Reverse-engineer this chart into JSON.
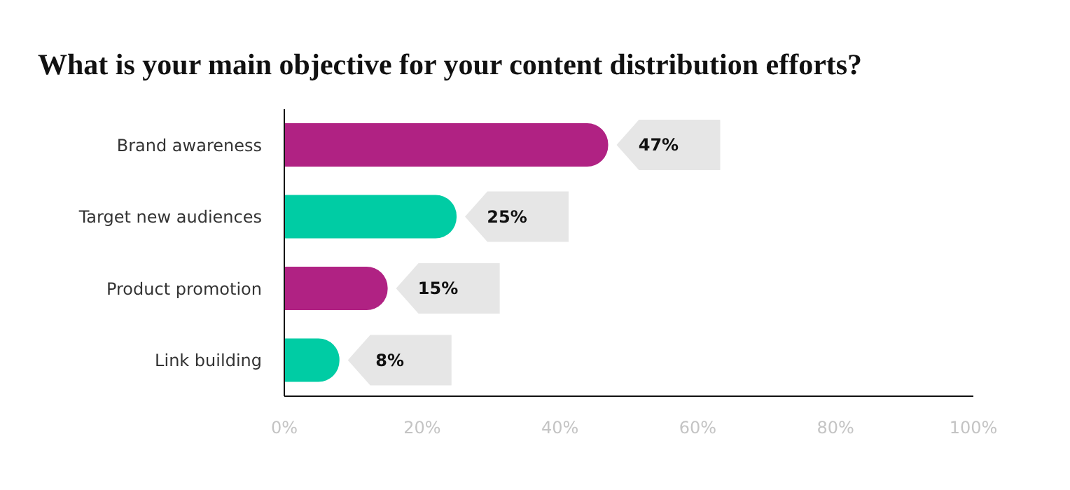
{
  "chart_data": {
    "type": "bar",
    "orientation": "horizontal",
    "title": "What is your main objective for your content distribution efforts?",
    "categories": [
      "Brand awareness",
      "Target new audiences",
      "Product promotion",
      "Link building"
    ],
    "values": [
      47,
      25,
      15,
      8
    ],
    "colors": [
      "#b02283",
      "#00cca4",
      "#b02283",
      "#00cca4"
    ],
    "value_labels": [
      "47%",
      "25%",
      "15%",
      "8%"
    ],
    "xlim": [
      0,
      100
    ],
    "xticks": [
      {
        "value": 0,
        "label": "0%"
      },
      {
        "value": 20,
        "label": "20%"
      },
      {
        "value": 40,
        "label": "40%"
      },
      {
        "value": 60,
        "label": "60%"
      },
      {
        "value": 80,
        "label": "80%"
      },
      {
        "value": 100,
        "label": "100%"
      }
    ],
    "grid": false,
    "legend": false
  }
}
